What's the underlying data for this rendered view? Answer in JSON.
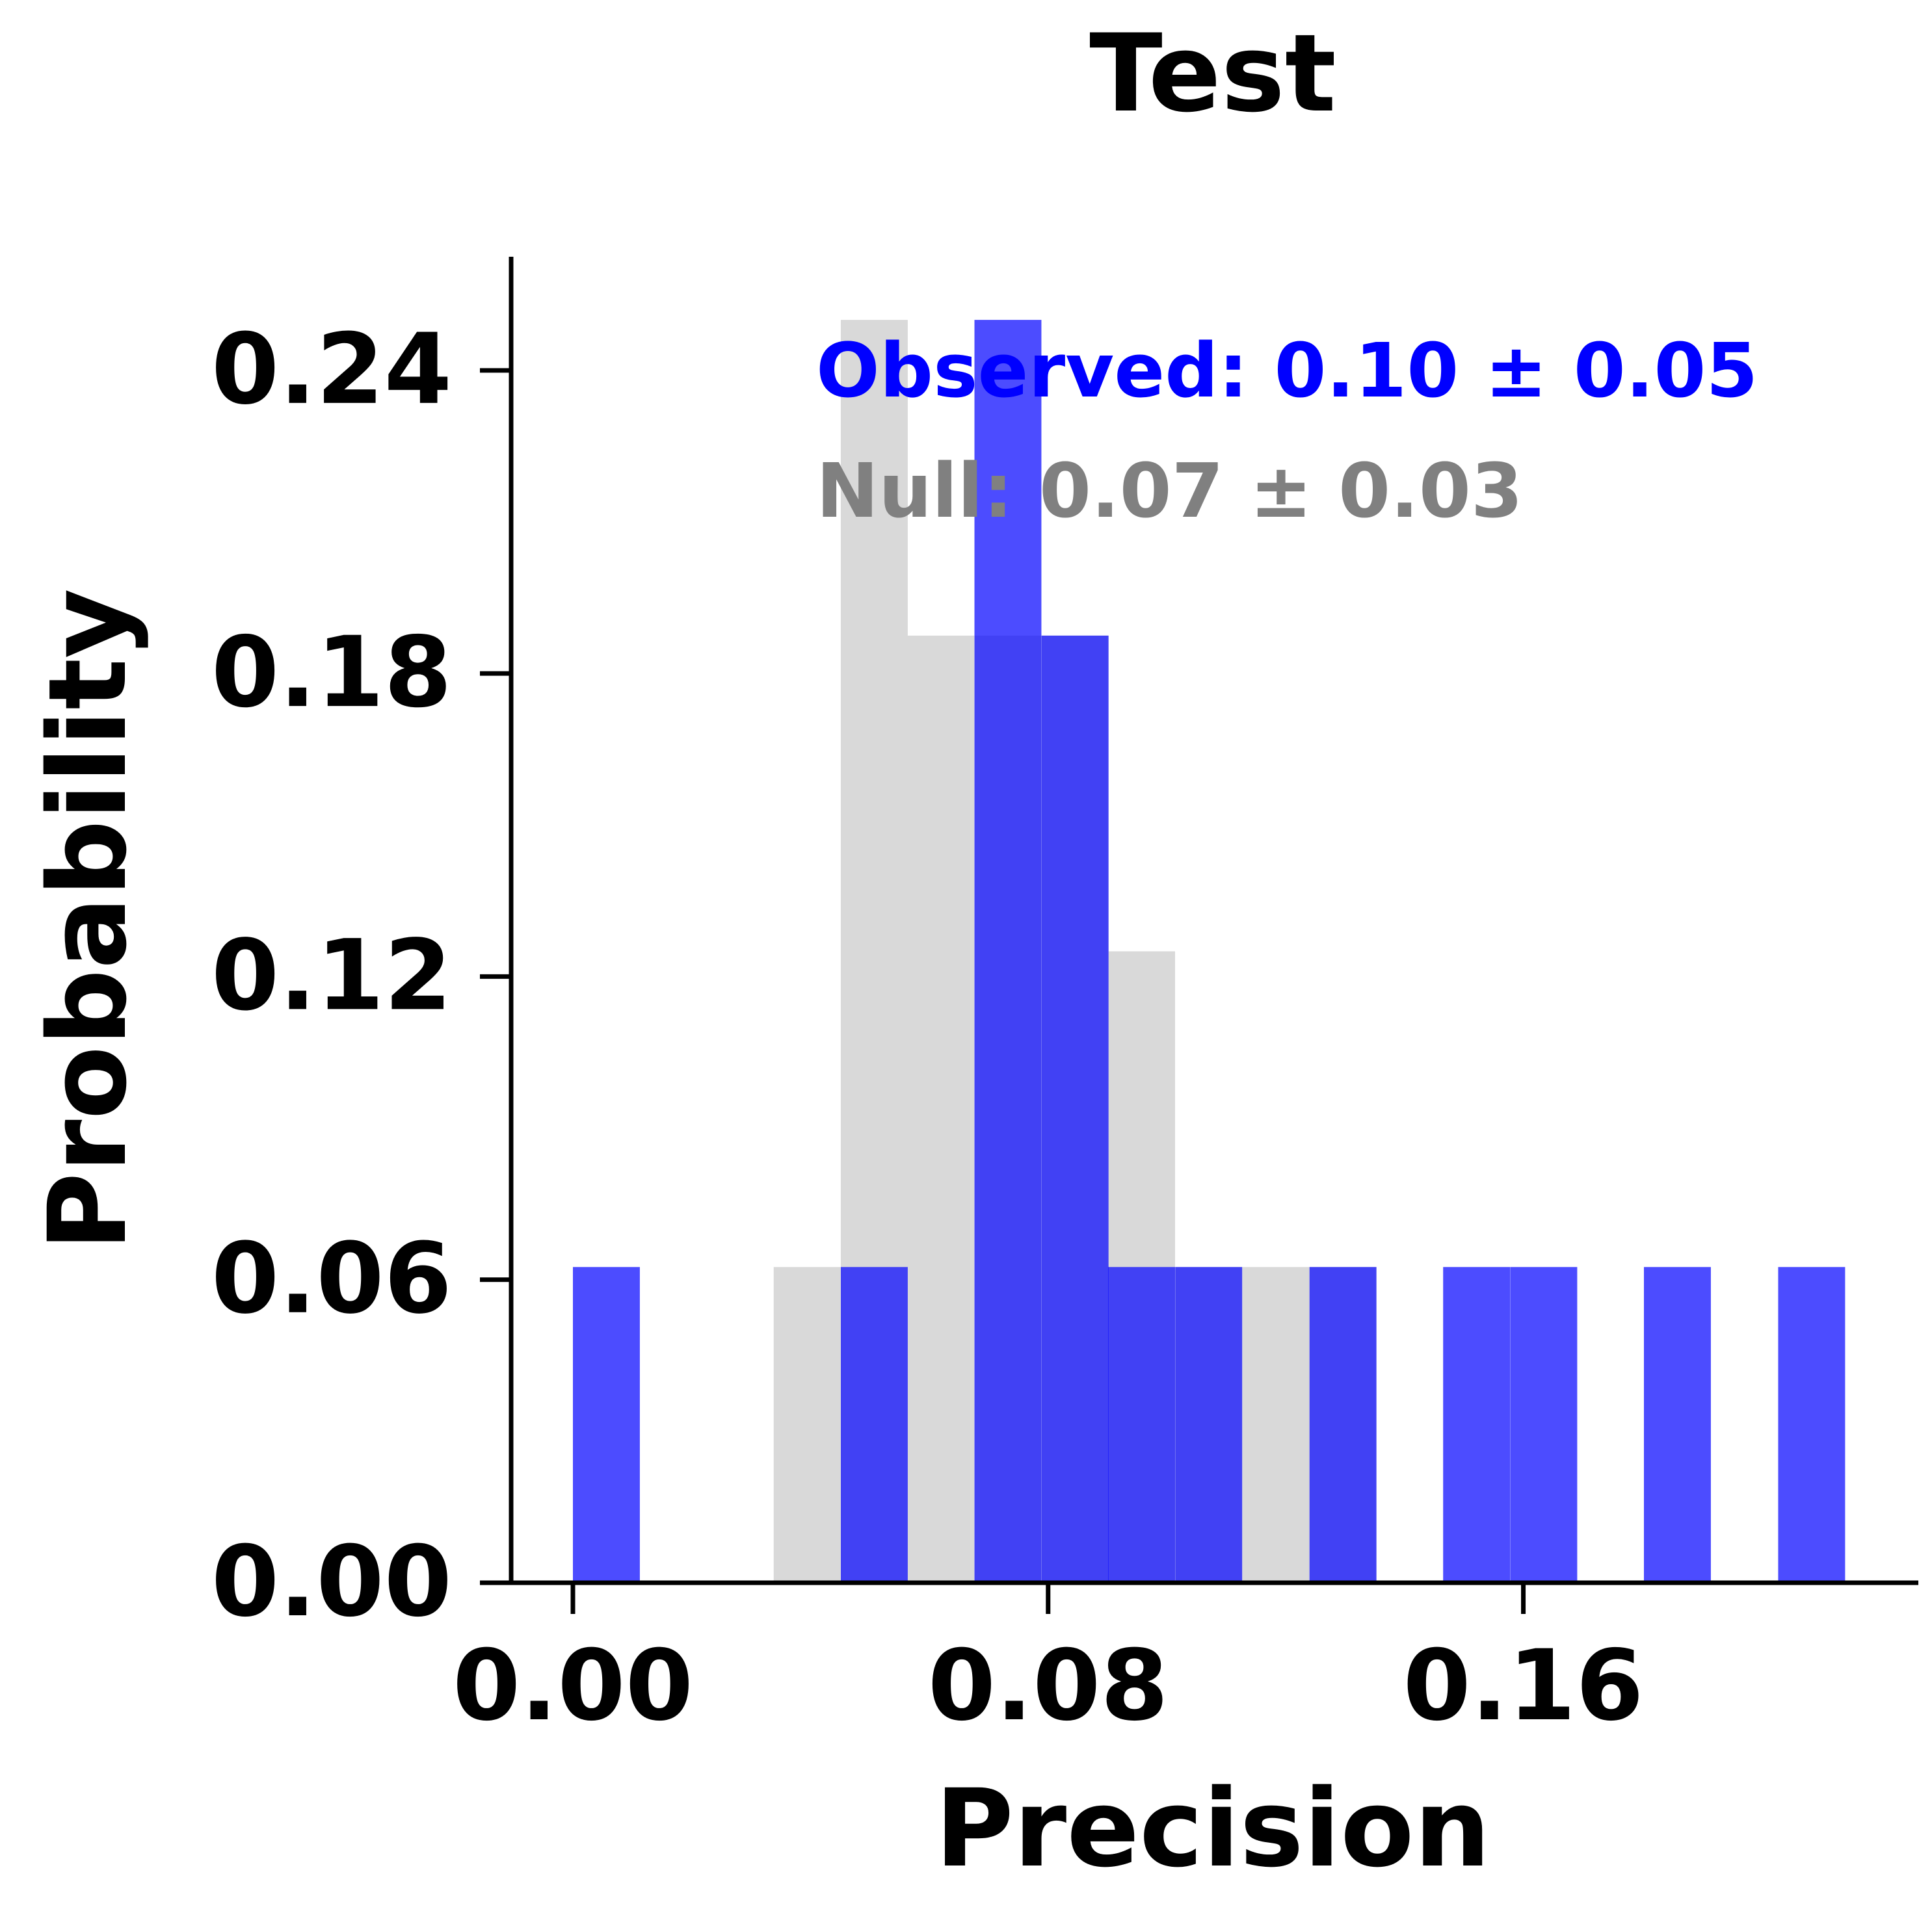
{
  "chart_data": {
    "type": "bar",
    "title": "Test",
    "xlabel": "Precision",
    "ylabel": "Probability",
    "xlim": [
      -0.0104,
      0.2265
    ],
    "ylim": [
      0,
      0.2625
    ],
    "xticks": [
      "0.00",
      "0.08",
      "0.16"
    ],
    "xtick_values": [
      0,
      0.08,
      0.16
    ],
    "yticks": [
      "0.00",
      "0.06",
      "0.12",
      "0.18",
      "0.24"
    ],
    "ytick_values": [
      0,
      0.06,
      0.12,
      0.18,
      0.24
    ],
    "grid": false,
    "bin_width": 0.01127,
    "series": [
      {
        "color": "#d9d9d9",
        "bins": [
          {
            "x0": 0.0338,
            "p": 0.0625
          },
          {
            "x0": 0.0451,
            "p": 0.25
          },
          {
            "x0": 0.0563,
            "p": 0.1875
          },
          {
            "x0": 0.0676,
            "p": 0.1875
          },
          {
            "x0": 0.0789,
            "p": 0.1875
          },
          {
            "x0": 0.0901,
            "p": 0.125
          },
          {
            "x0": 0.1014,
            "p": 0.0625
          },
          {
            "x0": 0.1127,
            "p": 0.0625
          },
          {
            "x0": 0.124,
            "p": 0.0625
          }
        ]
      },
      {
        "color": "#0000ff",
        "opacity": 0.7,
        "bins": [
          {
            "x0": 0.0,
            "p": 0.0625
          },
          {
            "x0": 0.0451,
            "p": 0.0625
          },
          {
            "x0": 0.0676,
            "p": 0.25
          },
          {
            "x0": 0.0789,
            "p": 0.1875
          },
          {
            "x0": 0.0901,
            "p": 0.0625
          },
          {
            "x0": 0.1014,
            "p": 0.0625
          },
          {
            "x0": 0.124,
            "p": 0.0625
          },
          {
            "x0": 0.1465,
            "p": 0.0625
          },
          {
            "x0": 0.1578,
            "p": 0.0625
          },
          {
            "x0": 0.1803,
            "p": 0.0625
          },
          {
            "x0": 0.2029,
            "p": 0.0625
          }
        ]
      }
    ],
    "annotations": [
      {
        "text": "Observed: 0.10 ± 0.05",
        "color": "#0000ff"
      },
      {
        "text": "Null: 0.07 ± 0.03",
        "color": "#808080"
      }
    ]
  }
}
